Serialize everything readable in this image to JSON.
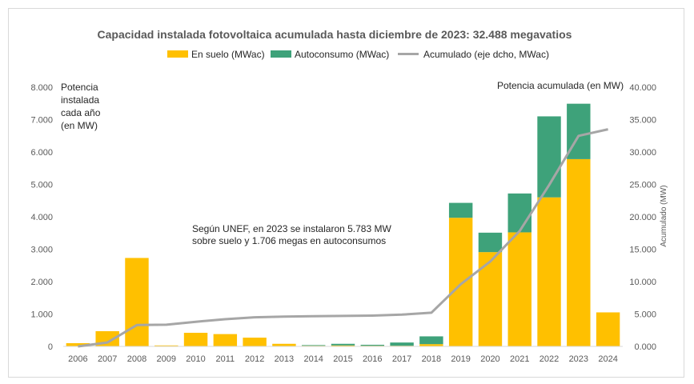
{
  "chart_data": {
    "type": "bar",
    "title": "Capacidad instalada fotovoltaica acumulada hasta diciembre de 2023: 32.488 megavatios",
    "categories": [
      "2006",
      "2007",
      "2008",
      "2009",
      "2010",
      "2011",
      "2012",
      "2013",
      "2014",
      "2015",
      "2016",
      "2017",
      "2018",
      "2019",
      "2020",
      "2021",
      "2022",
      "2023",
      "2024"
    ],
    "series": [
      {
        "name": "En suelo (MWac)",
        "kind": "stacked-bar",
        "axis": "left",
        "color": "#FFC000",
        "values": [
          100,
          470,
          2730,
          30,
          420,
          380,
          270,
          80,
          20,
          30,
          20,
          20,
          70,
          3970,
          2910,
          3520,
          4600,
          5780,
          1050
        ]
      },
      {
        "name": "Autoconsumo (MWac)",
        "kind": "stacked-bar",
        "axis": "left",
        "color": "#3EA27A",
        "values": [
          0,
          0,
          0,
          0,
          0,
          0,
          0,
          0,
          20,
          50,
          30,
          100,
          240,
          460,
          600,
          1200,
          2500,
          1710,
          0
        ]
      },
      {
        "name": "Acumulado (eje dcho, MWac)",
        "kind": "line",
        "axis": "right",
        "color": "#A6A6A6",
        "values": [
          0,
          600,
          3300,
          3350,
          3800,
          4200,
          4500,
          4600,
          4650,
          4700,
          4750,
          4900,
          5200,
          9600,
          13100,
          17800,
          24900,
          32488,
          33500
        ]
      }
    ],
    "left_axis": {
      "ylim": [
        0,
        8000
      ],
      "ticks": [
        "0",
        "1.000",
        "2.000",
        "3.000",
        "4.000",
        "5.000",
        "6.000",
        "7.000",
        "8.000"
      ]
    },
    "right_axis": {
      "ylim": [
        0,
        40000
      ],
      "ticks": [
        "0.000",
        "5.000",
        "10.000",
        "15.000",
        "20.000",
        "25.000",
        "30.000",
        "35.000",
        "40.000"
      ],
      "ylabel": "Acumulado (MW)"
    },
    "left_note": [
      "Potencia",
      "instalada",
      "cada año",
      "(en MW)"
    ],
    "right_note": "Potencia acumulada (en MW)",
    "annotation": [
      "Según UNEF, en 2023 se instalaron 5.783 MW",
      "sobre suelo y 1.706 megas en autoconsumos"
    ],
    "legend_position": "top"
  }
}
